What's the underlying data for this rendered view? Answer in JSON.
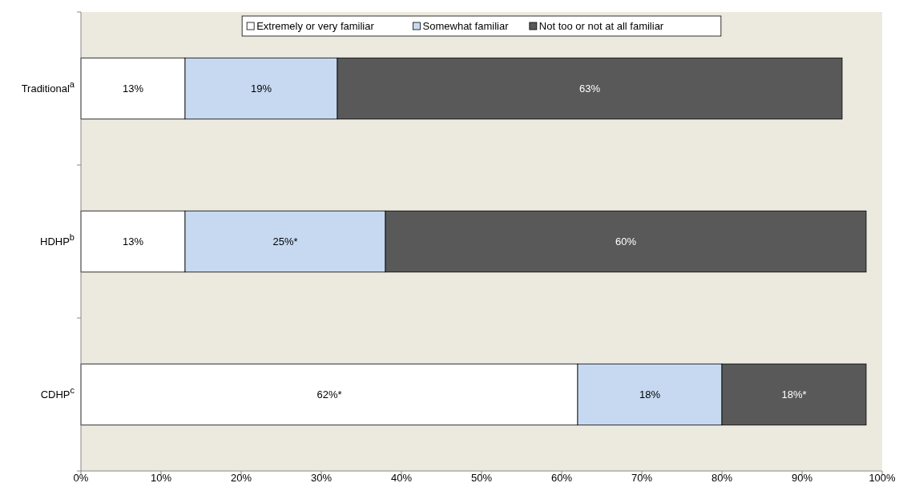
{
  "chart_data": {
    "type": "bar",
    "orientation": "horizontal",
    "stacked": true,
    "categories": [
      "Traditional$^{a}$",
      "HDHP$^{b}$",
      "CDHP$^{c}$"
    ],
    "series": [
      {
        "name": "Extremely or very familiar",
        "color": "#ffffff",
        "values": [
          13,
          13,
          62
        ],
        "value_labels": [
          "13%",
          "13%",
          "62%*"
        ]
      },
      {
        "name": "Somewhat familiar",
        "color": "#c6d9f1",
        "values": [
          19,
          25,
          18
        ],
        "value_labels": [
          "19%",
          "25%*",
          "18%"
        ]
      },
      {
        "name": "Not too or not at all familiar",
        "color": "#595959",
        "values": [
          63,
          60,
          18
        ],
        "value_labels": [
          "63%",
          "60%",
          "18%*"
        ]
      }
    ],
    "xlim": [
      0,
      100
    ],
    "xticks": [
      {
        "value": 0,
        "label": "0%"
      },
      {
        "value": 10,
        "label": "10%"
      },
      {
        "value": 20,
        "label": "20%"
      },
      {
        "value": 30,
        "label": "30%"
      },
      {
        "value": 40,
        "label": "40%"
      },
      {
        "value": 50,
        "label": "50%"
      },
      {
        "value": 60,
        "label": "60%"
      },
      {
        "value": 70,
        "label": "70%"
      },
      {
        "value": 80,
        "label": "80%"
      },
      {
        "value": 90,
        "label": "90%"
      },
      {
        "value": 100,
        "label": "100%"
      }
    ],
    "grid": false,
    "legend": "top"
  }
}
